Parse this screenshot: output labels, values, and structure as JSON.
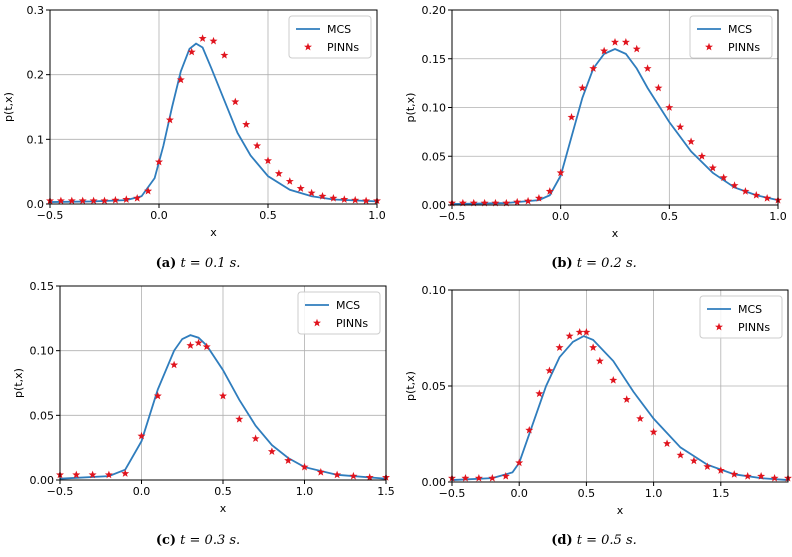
{
  "legend": {
    "line": "MCS",
    "marker": "PINNs"
  },
  "colors": {
    "mcs": "#2f7dbd",
    "pinns": "#e0141e"
  },
  "chart_data": [
    {
      "type": "line",
      "caption": {
        "label": "(a)",
        "text": "t = 0.1 s."
      },
      "xlabel": "x",
      "ylabel": "p(t,x)",
      "xlim": [
        -0.5,
        1.0
      ],
      "ylim": [
        0,
        0.3
      ],
      "xticks": [
        -0.5,
        0.0,
        0.5,
        1.0
      ],
      "xtick_labels": [
        "−0.5",
        "0.0",
        "0.5",
        "1.0"
      ],
      "yticks": [
        0,
        0.1,
        0.2,
        0.3
      ],
      "ytick_labels": [
        "0.0",
        "0.1",
        "0.2",
        "0.3"
      ],
      "grid": true,
      "legend_position": "top-right",
      "series": [
        {
          "name": "MCS",
          "style": "line",
          "x": [
            -0.5,
            -0.3,
            -0.15,
            -0.08,
            -0.02,
            0.02,
            0.06,
            0.1,
            0.14,
            0.17,
            0.2,
            0.24,
            0.3,
            0.36,
            0.42,
            0.5,
            0.6,
            0.7,
            0.8,
            1.0
          ],
          "y": [
            0.003,
            0.004,
            0.006,
            0.012,
            0.04,
            0.09,
            0.15,
            0.205,
            0.24,
            0.248,
            0.242,
            0.21,
            0.16,
            0.11,
            0.075,
            0.043,
            0.022,
            0.012,
            0.007,
            0.004
          ]
        },
        {
          "name": "PINNs",
          "style": "marker",
          "x": [
            -0.5,
            -0.45,
            -0.4,
            -0.35,
            -0.3,
            -0.25,
            -0.2,
            -0.15,
            -0.1,
            -0.05,
            0.0,
            0.05,
            0.1,
            0.15,
            0.2,
            0.25,
            0.3,
            0.35,
            0.4,
            0.45,
            0.5,
            0.55,
            0.6,
            0.65,
            0.7,
            0.75,
            0.8,
            0.85,
            0.9,
            0.95,
            1.0
          ],
          "y": [
            0.005,
            0.005,
            0.005,
            0.005,
            0.005,
            0.005,
            0.006,
            0.007,
            0.009,
            0.02,
            0.065,
            0.13,
            0.192,
            0.235,
            0.256,
            0.252,
            0.23,
            0.158,
            0.123,
            0.09,
            0.067,
            0.047,
            0.035,
            0.024,
            0.017,
            0.012,
            0.009,
            0.007,
            0.006,
            0.005,
            0.005
          ]
        }
      ]
    },
    {
      "type": "line",
      "caption": {
        "label": "(b)",
        "text": "t = 0.2 s."
      },
      "xlabel": "x",
      "ylabel": "p(t,x)",
      "xlim": [
        -0.5,
        1.0
      ],
      "ylim": [
        0,
        0.2
      ],
      "xticks": [
        -0.5,
        0.0,
        0.5,
        1.0
      ],
      "xtick_labels": [
        "−0.5",
        "0.0",
        "0.5",
        "1.0"
      ],
      "yticks": [
        0,
        0.05,
        0.1,
        0.15,
        0.2
      ],
      "ytick_labels": [
        "0.00",
        "0.05",
        "0.10",
        "0.15",
        "0.20"
      ],
      "grid": true,
      "legend_position": "top-right",
      "series": [
        {
          "name": "MCS",
          "style": "line",
          "x": [
            -0.5,
            -0.25,
            -0.1,
            -0.05,
            0.0,
            0.05,
            0.1,
            0.15,
            0.2,
            0.25,
            0.3,
            0.35,
            0.4,
            0.5,
            0.6,
            0.7,
            0.8,
            0.9,
            1.0
          ],
          "y": [
            0.001,
            0.002,
            0.005,
            0.01,
            0.03,
            0.07,
            0.11,
            0.14,
            0.155,
            0.16,
            0.155,
            0.14,
            0.12,
            0.085,
            0.055,
            0.033,
            0.018,
            0.01,
            0.005
          ]
        },
        {
          "name": "PINNs",
          "style": "marker",
          "x": [
            -0.5,
            -0.45,
            -0.4,
            -0.35,
            -0.3,
            -0.25,
            -0.2,
            -0.15,
            -0.1,
            -0.05,
            0.0,
            0.05,
            0.1,
            0.15,
            0.2,
            0.25,
            0.3,
            0.35,
            0.4,
            0.45,
            0.5,
            0.55,
            0.6,
            0.65,
            0.7,
            0.75,
            0.8,
            0.85,
            0.9,
            0.95,
            1.0
          ],
          "y": [
            0.002,
            0.002,
            0.002,
            0.002,
            0.002,
            0.002,
            0.003,
            0.004,
            0.007,
            0.014,
            0.033,
            0.09,
            0.12,
            0.14,
            0.158,
            0.167,
            0.167,
            0.16,
            0.14,
            0.12,
            0.1,
            0.08,
            0.065,
            0.05,
            0.038,
            0.028,
            0.02,
            0.014,
            0.01,
            0.007,
            0.005
          ]
        }
      ]
    },
    {
      "type": "line",
      "caption": {
        "label": "(c)",
        "text": "t = 0.3 s."
      },
      "xlabel": "x",
      "ylabel": "p(t,x)",
      "xlim": [
        -0.5,
        1.5
      ],
      "ylim": [
        0,
        0.15
      ],
      "xticks": [
        -0.5,
        0.0,
        0.5,
        1.0,
        1.5
      ],
      "xtick_labels": [
        "−0.5",
        "0.0",
        "0.5",
        "1.0",
        "1.5"
      ],
      "yticks": [
        0,
        0.05,
        0.1,
        0.15
      ],
      "ytick_labels": [
        "0.00",
        "0.05",
        "0.10",
        "0.15"
      ],
      "grid": true,
      "legend_position": "top-right",
      "series": [
        {
          "name": "MCS",
          "style": "line",
          "x": [
            -0.5,
            -0.2,
            -0.1,
            0.0,
            0.05,
            0.1,
            0.2,
            0.25,
            0.3,
            0.35,
            0.4,
            0.5,
            0.6,
            0.7,
            0.8,
            0.9,
            1.0,
            1.2,
            1.5
          ],
          "y": [
            0.001,
            0.003,
            0.008,
            0.03,
            0.05,
            0.07,
            0.1,
            0.109,
            0.112,
            0.11,
            0.104,
            0.085,
            0.062,
            0.042,
            0.027,
            0.017,
            0.01,
            0.004,
            0.001
          ]
        },
        {
          "name": "PINNs",
          "style": "marker",
          "x": [
            -0.5,
            -0.4,
            -0.3,
            -0.2,
            -0.1,
            0.0,
            0.1,
            0.2,
            0.3,
            0.35,
            0.4,
            0.5,
            0.6,
            0.7,
            0.8,
            0.9,
            1.0,
            1.1,
            1.2,
            1.3,
            1.4,
            1.5
          ],
          "y": [
            0.004,
            0.004,
            0.004,
            0.004,
            0.005,
            0.034,
            0.065,
            0.089,
            0.104,
            0.106,
            0.103,
            0.065,
            0.047,
            0.032,
            0.022,
            0.015,
            0.01,
            0.006,
            0.004,
            0.003,
            0.002,
            0.002
          ]
        }
      ]
    },
    {
      "type": "line",
      "caption": {
        "label": "(d)",
        "text": "t = 0.5 s."
      },
      "xlabel": "x",
      "ylabel": "p(t,x)",
      "xlim": [
        -0.5,
        2.0
      ],
      "ylim": [
        0,
        0.1
      ],
      "xticks": [
        -0.5,
        0.0,
        0.5,
        1.0,
        1.5
      ],
      "xtick_labels": [
        "−0.5",
        "0.0",
        "0.5",
        "1.0",
        "1.5"
      ],
      "yticks": [
        0,
        0.05,
        0.1
      ],
      "ytick_labels": [
        "0.00",
        "0.05",
        "0.10"
      ],
      "grid": true,
      "legend_position": "top-right",
      "series": [
        {
          "name": "MCS",
          "style": "line",
          "x": [
            -0.5,
            -0.2,
            -0.05,
            0.0,
            0.1,
            0.2,
            0.3,
            0.4,
            0.48,
            0.55,
            0.7,
            0.85,
            1.0,
            1.2,
            1.4,
            1.6,
            1.8,
            2.0
          ],
          "y": [
            0.001,
            0.002,
            0.005,
            0.01,
            0.03,
            0.05,
            0.065,
            0.073,
            0.076,
            0.074,
            0.063,
            0.047,
            0.033,
            0.018,
            0.009,
            0.004,
            0.002,
            0.001
          ]
        },
        {
          "name": "PINNs",
          "style": "marker",
          "x": [
            -0.5,
            -0.4,
            -0.3,
            -0.2,
            -0.1,
            0.0,
            0.075,
            0.15,
            0.225,
            0.3,
            0.375,
            0.45,
            0.5,
            0.55,
            0.6,
            0.7,
            0.8,
            0.9,
            1.0,
            1.1,
            1.2,
            1.3,
            1.4,
            1.5,
            1.6,
            1.7,
            1.8,
            1.9,
            2.0
          ],
          "y": [
            0.002,
            0.002,
            0.002,
            0.002,
            0.003,
            0.01,
            0.027,
            0.046,
            0.058,
            0.07,
            0.076,
            0.078,
            0.078,
            0.07,
            0.063,
            0.053,
            0.043,
            0.033,
            0.026,
            0.02,
            0.014,
            0.011,
            0.008,
            0.006,
            0.004,
            0.003,
            0.003,
            0.002,
            0.002
          ]
        }
      ]
    }
  ]
}
